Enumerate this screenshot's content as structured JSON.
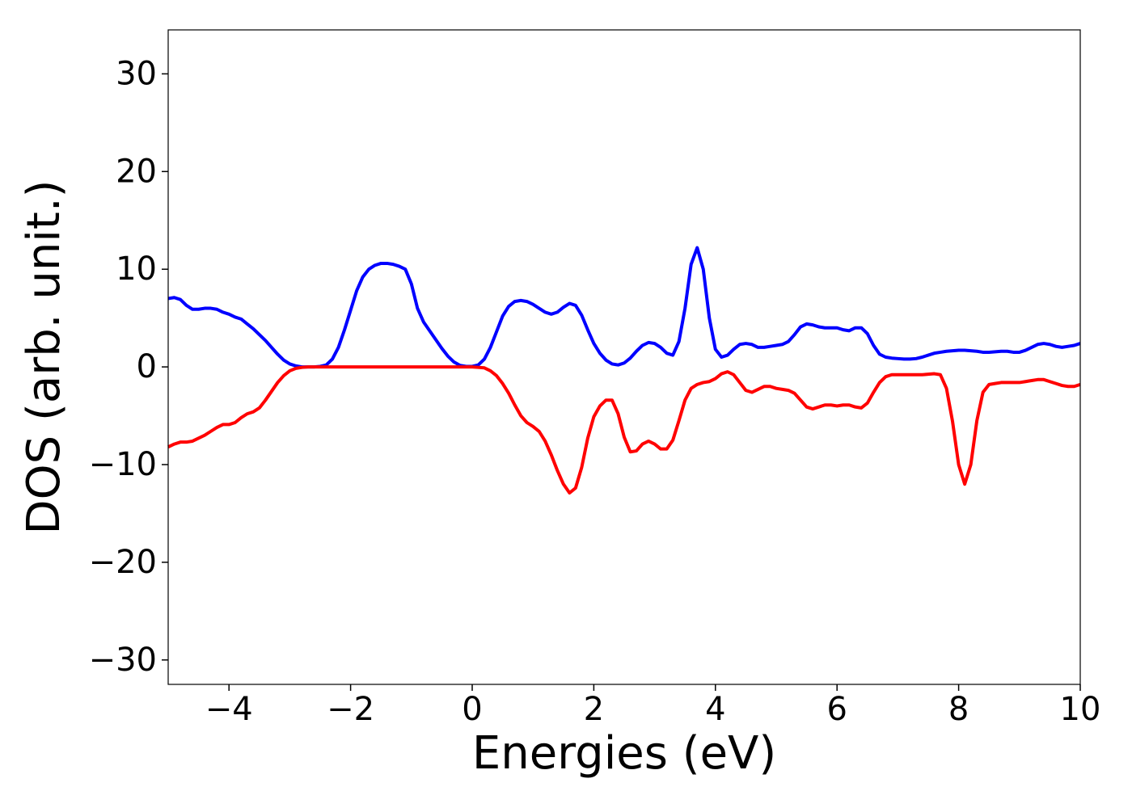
{
  "chart_data": {
    "type": "line",
    "xlabel": "Energies (eV)",
    "ylabel": "DOS (arb. unit.)",
    "x": [
      -5.0,
      -4.9,
      -4.8,
      -4.7,
      -4.6,
      -4.5,
      -4.4,
      -4.3,
      -4.2,
      -4.1,
      -4.0,
      -3.9,
      -3.8,
      -3.7,
      -3.6,
      -3.5,
      -3.4,
      -3.3,
      -3.2,
      -3.1,
      -3.0,
      -2.9,
      -2.8,
      -2.7,
      -2.6,
      -2.5,
      -2.4,
      -2.3,
      -2.2,
      -2.1,
      -2.0,
      -1.9,
      -1.8,
      -1.7,
      -1.6,
      -1.5,
      -1.4,
      -1.3,
      -1.2,
      -1.1,
      -1.0,
      -0.9,
      -0.8,
      -0.7,
      -0.6,
      -0.5,
      -0.4,
      -0.3,
      -0.2,
      -0.1,
      0.0,
      0.1,
      0.2,
      0.3,
      0.4,
      0.5,
      0.6,
      0.7,
      0.8,
      0.9,
      1.0,
      1.1,
      1.2,
      1.3,
      1.4,
      1.5,
      1.6,
      1.7,
      1.8,
      1.9,
      2.0,
      2.1,
      2.2,
      2.3,
      2.4,
      2.5,
      2.6,
      2.7,
      2.8,
      2.9,
      3.0,
      3.1,
      3.2,
      3.3,
      3.4,
      3.5,
      3.6,
      3.7,
      3.8,
      3.9,
      4.0,
      4.1,
      4.2,
      4.3,
      4.4,
      4.5,
      4.6,
      4.7,
      4.8,
      4.9,
      5.0,
      5.1,
      5.2,
      5.3,
      5.4,
      5.5,
      5.6,
      5.7,
      5.8,
      5.9,
      6.0,
      6.1,
      6.2,
      6.3,
      6.4,
      6.5,
      6.6,
      6.7,
      6.8,
      6.9,
      7.0,
      7.1,
      7.2,
      7.3,
      7.4,
      7.5,
      7.6,
      7.7,
      7.8,
      7.9,
      8.0,
      8.1,
      8.2,
      8.3,
      8.4,
      8.5,
      8.6,
      8.7,
      8.8,
      8.9,
      9.0,
      9.1,
      9.2,
      9.3,
      9.4,
      9.5,
      9.6,
      9.7,
      9.8,
      9.9,
      10.0
    ],
    "series": [
      {
        "color": "#0000ff",
        "values": [
          7.0,
          7.1,
          6.9,
          6.3,
          5.9,
          5.9,
          6.0,
          6.0,
          5.9,
          5.6,
          5.4,
          5.1,
          4.9,
          4.4,
          3.9,
          3.3,
          2.7,
          2.0,
          1.3,
          0.7,
          0.3,
          0.1,
          0,
          0,
          0,
          0.05,
          0.2,
          0.8,
          2.0,
          3.8,
          5.8,
          7.8,
          9.2,
          10.0,
          10.4,
          10.6,
          10.6,
          10.5,
          10.3,
          10.0,
          8.5,
          6.0,
          4.6,
          3.7,
          2.8,
          1.9,
          1.1,
          0.5,
          0.15,
          0.05,
          0.05,
          0.2,
          0.8,
          2.0,
          3.6,
          5.2,
          6.2,
          6.7,
          6.8,
          6.7,
          6.4,
          6.0,
          5.6,
          5.4,
          5.6,
          6.1,
          6.5,
          6.3,
          5.3,
          3.8,
          2.4,
          1.4,
          0.7,
          0.3,
          0.2,
          0.4,
          0.9,
          1.6,
          2.2,
          2.5,
          2.4,
          2.0,
          1.4,
          1.2,
          2.6,
          6.0,
          10.5,
          12.2,
          10.0,
          5.0,
          1.8,
          1.0,
          1.2,
          1.8,
          2.3,
          2.4,
          2.3,
          2.0,
          2.0,
          2.1,
          2.2,
          2.3,
          2.6,
          3.3,
          4.1,
          4.4,
          4.3,
          4.1,
          4.0,
          4.0,
          4.0,
          3.8,
          3.7,
          4.0,
          4.0,
          3.4,
          2.2,
          1.3,
          1.0,
          0.9,
          0.85,
          0.8,
          0.8,
          0.85,
          1.0,
          1.2,
          1.4,
          1.5,
          1.6,
          1.65,
          1.7,
          1.7,
          1.65,
          1.6,
          1.5,
          1.5,
          1.55,
          1.6,
          1.6,
          1.5,
          1.5,
          1.7,
          2.0,
          2.3,
          2.4,
          2.3,
          2.1,
          2.0,
          2.1,
          2.2,
          2.4
        ]
      },
      {
        "color": "#ff0000",
        "values": [
          -8.2,
          -7.9,
          -7.7,
          -7.7,
          -7.6,
          -7.3,
          -7.0,
          -6.6,
          -6.2,
          -5.9,
          -5.9,
          -5.7,
          -5.2,
          -4.8,
          -4.6,
          -4.2,
          -3.4,
          -2.5,
          -1.6,
          -0.9,
          -0.4,
          -0.15,
          -0.05,
          0,
          0,
          0,
          0,
          0,
          0,
          0,
          0,
          0,
          0,
          0,
          0,
          0,
          0,
          0,
          0,
          0,
          0,
          0,
          0,
          0,
          0,
          0,
          0,
          0,
          0,
          0,
          0,
          -0.05,
          -0.1,
          -0.4,
          -0.9,
          -1.7,
          -2.7,
          -3.9,
          -5.0,
          -5.7,
          -6.1,
          -6.6,
          -7.6,
          -9.0,
          -10.6,
          -12.0,
          -12.9,
          -12.4,
          -10.3,
          -7.3,
          -5.1,
          -4.0,
          -3.4,
          -3.4,
          -4.8,
          -7.2,
          -8.7,
          -8.6,
          -7.9,
          -7.6,
          -7.9,
          -8.4,
          -8.4,
          -7.5,
          -5.5,
          -3.4,
          -2.2,
          -1.8,
          -1.6,
          -1.5,
          -1.2,
          -0.7,
          -0.5,
          -0.8,
          -1.6,
          -2.4,
          -2.6,
          -2.3,
          -2.0,
          -2.0,
          -2.2,
          -2.3,
          -2.4,
          -2.7,
          -3.4,
          -4.1,
          -4.3,
          -4.1,
          -3.9,
          -3.9,
          -4.0,
          -3.9,
          -3.9,
          -4.1,
          -4.2,
          -3.7,
          -2.6,
          -1.6,
          -1.0,
          -0.8,
          -0.8,
          -0.8,
          -0.8,
          -0.8,
          -0.8,
          -0.75,
          -0.7,
          -0.8,
          -2.2,
          -5.6,
          -10.0,
          -12.0,
          -10.0,
          -5.5,
          -2.6,
          -1.8,
          -1.7,
          -1.6,
          -1.6,
          -1.6,
          -1.6,
          -1.5,
          -1.4,
          -1.3,
          -1.3,
          -1.5,
          -1.7,
          -1.9,
          -2.0,
          -2.0,
          -1.8
        ]
      }
    ],
    "xlim": [
      -5,
      10
    ],
    "xticks": [
      {
        "value": -4,
        "label": "−4"
      },
      {
        "value": -2,
        "label": "−2"
      },
      0,
      2,
      4,
      6,
      8,
      10
    ],
    "ylim": [
      -32.5,
      34.5
    ],
    "yticks": [
      {
        "value": -30,
        "label": "−30"
      },
      {
        "value": -20,
        "label": "−20"
      },
      {
        "value": -10,
        "label": "−10"
      },
      0,
      10,
      20,
      30
    ]
  }
}
